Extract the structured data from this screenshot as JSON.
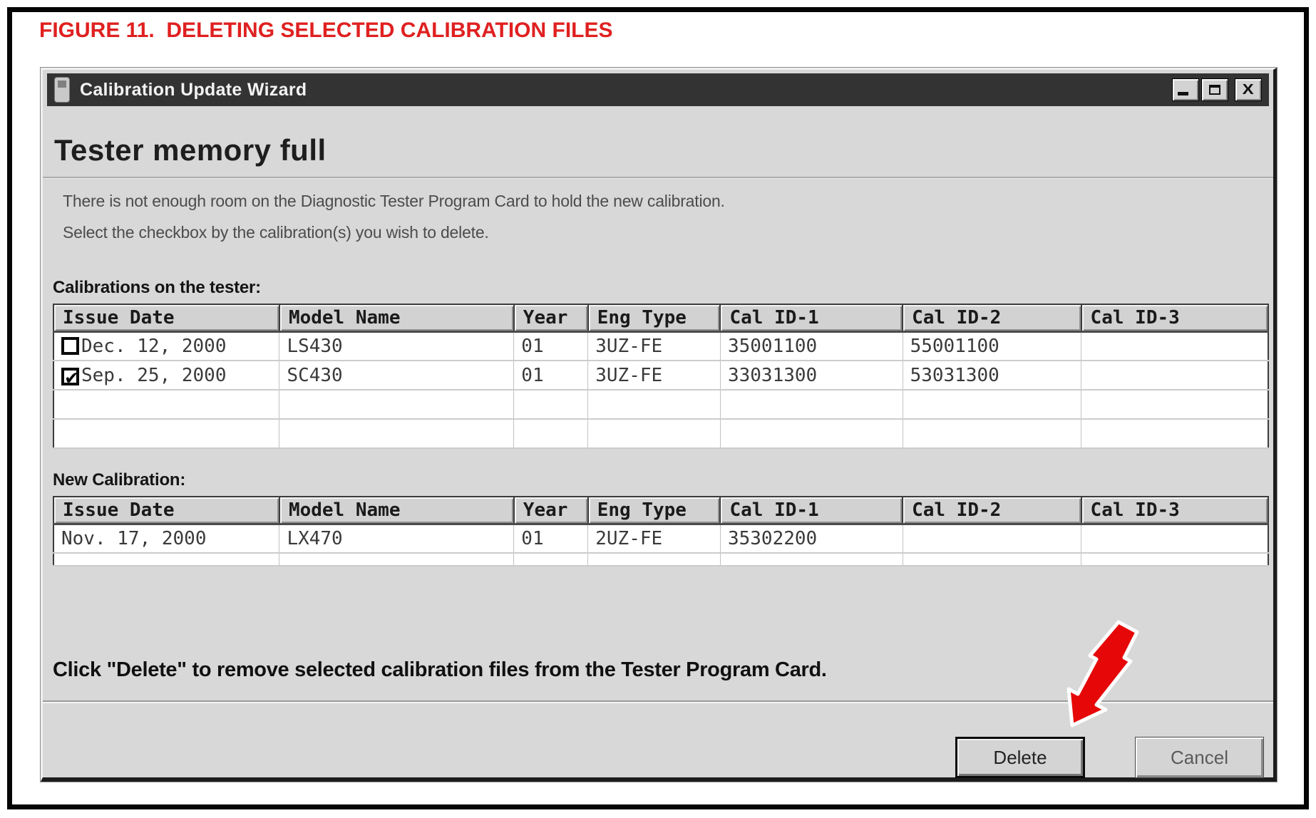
{
  "figure": {
    "title": "FIGURE 11.  DELETING SELECTED CALIBRATION FILES"
  },
  "window": {
    "title": "Calibration Update Wizard"
  },
  "content": {
    "heading": "Tester memory full",
    "description_line1": "There is not enough room on the Diagnostic Tester Program Card to hold the new calibration.",
    "description_line2": "Select the checkbox by the calibration(s) you wish to delete.",
    "tester_table": {
      "label": "Calibrations on the tester:",
      "columns": [
        "Issue Date",
        "Model Name",
        "Year",
        "Eng Type",
        "Cal ID-1",
        "Cal ID-2",
        "Cal ID-3"
      ],
      "rows": [
        {
          "checkbox": "unchecked",
          "cells": [
            "Dec. 12, 2000",
            "LS430",
            "01",
            "3UZ-FE",
            "35001100",
            "55001100",
            ""
          ]
        },
        {
          "checkbox": "checked",
          "cells": [
            "Sep. 25, 2000",
            "SC430",
            "01",
            "3UZ-FE",
            "33031300",
            "53031300",
            ""
          ]
        }
      ],
      "empty_row_count": 2,
      "empty_row_short": false
    },
    "new_table": {
      "label": "New Calibration:",
      "columns": [
        "Issue Date",
        "Model Name",
        "Year",
        "Eng Type",
        "Cal ID-1",
        "Cal ID-2",
        "Cal ID-3"
      ],
      "rows": [
        {
          "cells": [
            "Nov. 17, 2000",
            "LX470",
            "01",
            "2UZ-FE",
            "35302200",
            "",
            ""
          ]
        }
      ],
      "empty_row_count": 1,
      "empty_row_short": true
    },
    "instruction": "Click \"Delete\" to remove selected calibration files from the Tester Program Card.",
    "buttons": {
      "delete": "Delete",
      "cancel": "Cancel"
    }
  },
  "icons": {
    "check": "✔"
  },
  "colors": {
    "figure_title_red": "#e02020",
    "arrow_red": "#e60808",
    "titlebar_bg": "#333333",
    "dialog_bg": "#d8d8d8"
  }
}
